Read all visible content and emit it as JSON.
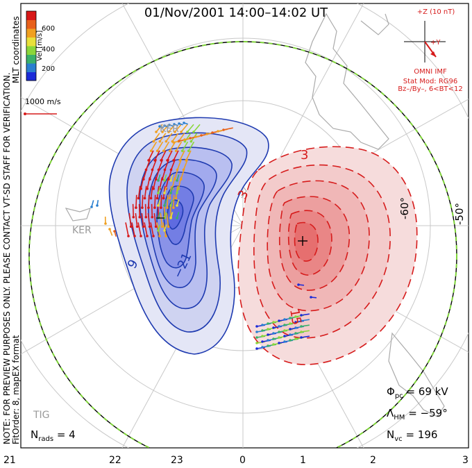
{
  "title": "01/Nov/2001  14:00–14:02  UT",
  "side_notes": {
    "preview": "NOTE: FOR PREVIEW PURPOSES ONLY. PLEASE CONTACT VT-SD STAFF FOR VERIFICATION.",
    "fit": "FitOrder: 8,  mapEX format",
    "coords": "MLT coordinates"
  },
  "velocity_legend": {
    "label": "Vel [m/s]",
    "ticks": [
      "200",
      "400",
      "600"
    ],
    "colors": [
      "#1b2bd8",
      "#2a7fd0",
      "#3ab06a",
      "#8ad63a",
      "#e8e03a",
      "#f0a020",
      "#e8601a",
      "#d81818"
    ]
  },
  "scale_vector": {
    "label": "1000 m/s",
    "color": "#d61b1b"
  },
  "imf": {
    "z_label": "+Z (10 nT)",
    "y_label": "+Y",
    "source": "OMNI IMF",
    "model": "Stat Mod: RG96",
    "condition": "Bz–/By–, 6<BT<12",
    "color": "#d61b1b"
  },
  "stats": {
    "phi_symbol": "Φ",
    "phi_sub": "pc",
    "phi_value": "= 69 kV",
    "lambda_symbol": "Λ",
    "lambda_sub": "HM",
    "lambda_value": "= −59°",
    "nvc_symbol": "N",
    "nvc_sub": "vc",
    "nvc_value": "= 196",
    "nrads_symbol": "N",
    "nrads_sub": "rads",
    "nrads_value": "= 4"
  },
  "mlt_labels": [
    "21",
    "22",
    "23",
    "0",
    "1",
    "2",
    "3"
  ],
  "lat_labels": [
    "-60°",
    "-50°"
  ],
  "contour_labels": [
    "3",
    "3",
    "15",
    "9",
    "−21"
  ],
  "stations": [
    "KER",
    "KER",
    "TIG"
  ],
  "colors": {
    "negative_cell": "#1e3ab0",
    "positive_cell": "#d61b1b",
    "boundary_dash": "#7fd43a",
    "grid": "#bdbdbd",
    "coastline": "#aaaaaa"
  }
}
